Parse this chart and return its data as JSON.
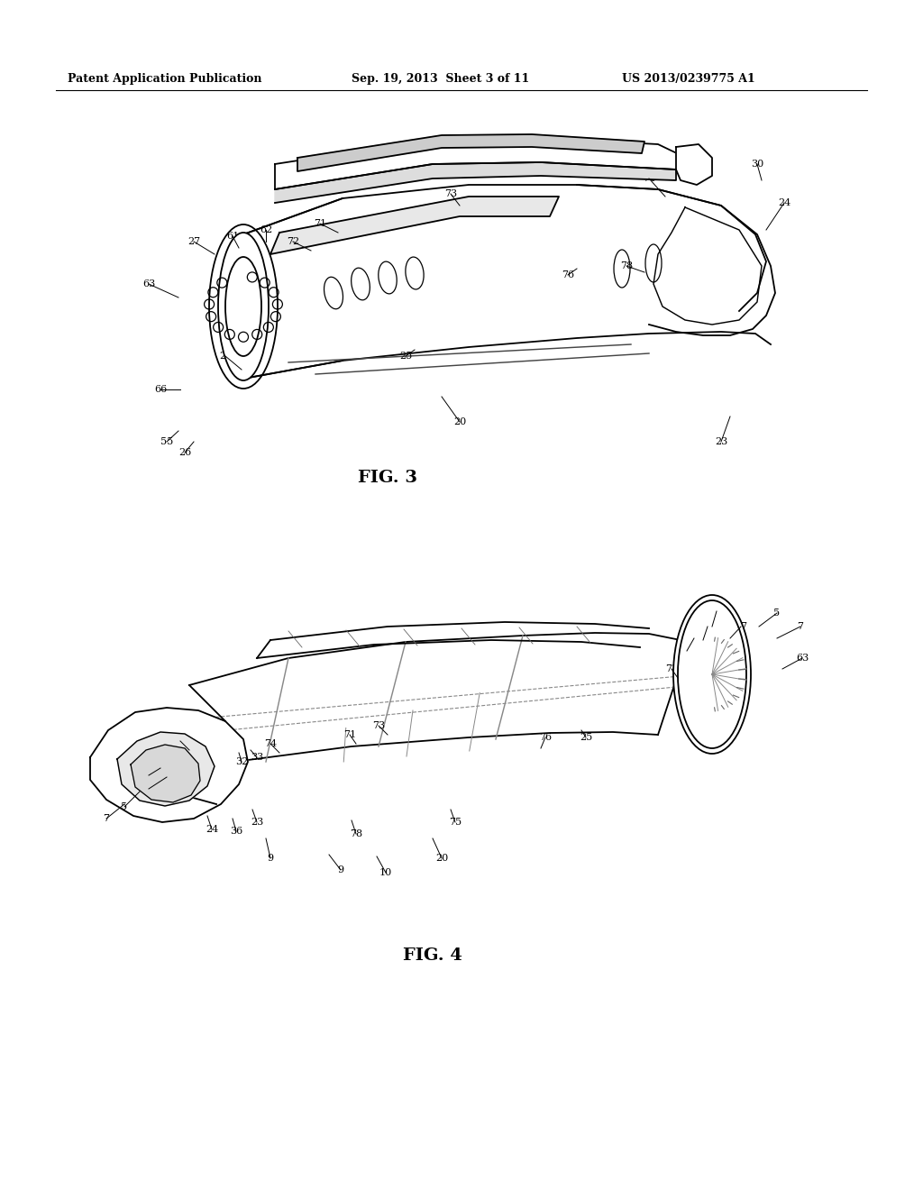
{
  "header_left": "Patent Application Publication",
  "header_mid": "Sep. 19, 2013  Sheet 3 of 11",
  "header_right": "US 2013/0239775 A1",
  "fig3_label": "FIG. 3",
  "fig4_label": "FIG. 4",
  "bg_color": "#ffffff",
  "line_color": "#000000",
  "lw": 1.3
}
